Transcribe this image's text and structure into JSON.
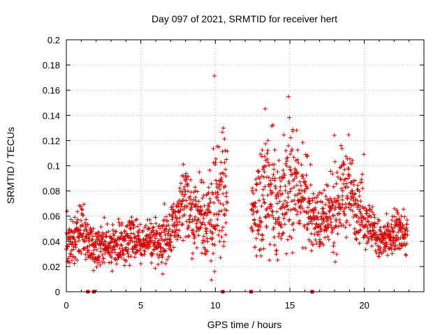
{
  "chart_data": {
    "type": "scatter",
    "title": "Day 097 of 2021, SRMTID for receiver hert",
    "xlabel": "GPS time / hours",
    "ylabel": "SRMTID / TECUs",
    "xlim": [
      0,
      24
    ],
    "ylim": [
      0,
      0.2
    ],
    "x_ticks": [
      0,
      5,
      10,
      15,
      20
    ],
    "x_tick_labels": [
      "0",
      "5",
      "10",
      "15",
      "20"
    ],
    "y_ticks": [
      0,
      0.02,
      0.04,
      0.06,
      0.08,
      0.1,
      0.12,
      0.14,
      0.16,
      0.18,
      0.2
    ],
    "y_tick_labels": [
      "0",
      "0.02",
      "0.04",
      "0.06",
      "0.08",
      "0.1",
      "0.12",
      "0.14",
      "0.16",
      "0.18",
      "0.2"
    ],
    "grid": true,
    "marker": "+",
    "color": "#ff0000",
    "marker_color": "#d40000",
    "gap_marker_color": "#cc0000",
    "series_envelope": {
      "description_x": [
        0,
        0.5,
        1,
        1.5,
        2,
        3,
        4,
        5,
        6,
        7,
        7.5,
        8,
        8.5,
        9,
        9.5,
        10,
        10.5,
        12.5,
        13,
        13.5,
        14,
        14.5,
        15,
        15.5,
        16,
        16.5,
        17,
        17.5,
        18,
        18.5,
        19,
        19.5,
        20,
        20.5,
        21,
        21.5,
        22,
        22.5,
        22.8
      ],
      "typical_y": [
        0.035,
        0.04,
        0.05,
        0.04,
        0.035,
        0.035,
        0.04,
        0.04,
        0.04,
        0.045,
        0.06,
        0.07,
        0.06,
        0.06,
        0.055,
        0.06,
        0.08,
        0.06,
        0.07,
        0.08,
        0.07,
        0.07,
        0.08,
        0.085,
        0.07,
        0.06,
        0.055,
        0.055,
        0.065,
        0.08,
        0.08,
        0.07,
        0.06,
        0.05,
        0.04,
        0.04,
        0.045,
        0.05,
        0.045
      ],
      "spread_y": [
        0.015,
        0.02,
        0.02,
        0.015,
        0.015,
        0.015,
        0.015,
        0.015,
        0.015,
        0.02,
        0.025,
        0.03,
        0.025,
        0.025,
        0.03,
        0.05,
        0.04,
        0.03,
        0.04,
        0.04,
        0.035,
        0.04,
        0.05,
        0.04,
        0.025,
        0.02,
        0.02,
        0.02,
        0.03,
        0.03,
        0.03,
        0.025,
        0.02,
        0.015,
        0.015,
        0.015,
        0.015,
        0.015,
        0.015
      ],
      "data_gap_hours": [
        10.8,
        12.4
      ],
      "data_end_hour": 22.9
    },
    "gap_markers_x": [
      1.45,
      1.85,
      10.5,
      12.4,
      16.5
    ],
    "gap_markers_y": 0
  }
}
